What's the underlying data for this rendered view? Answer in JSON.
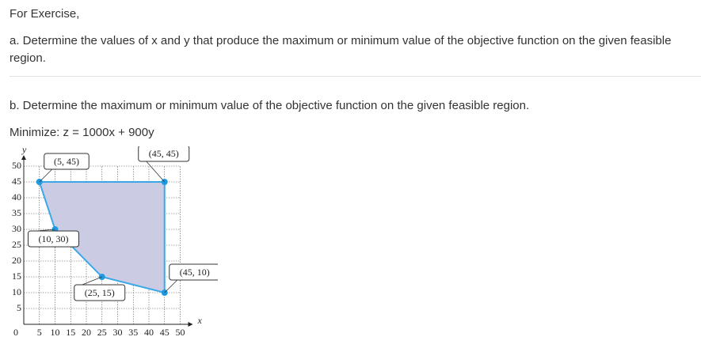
{
  "text": {
    "intro": "For Exercise,",
    "part_a": "a. Determine the values of x and y that produce the maximum or minimum value of the objective function on the given feasible region.",
    "part_b": "b. Determine the maximum or minimum value of the objective function on the given feasible region.",
    "objective": "Minimize: z = 1000x + 900y"
  },
  "chart_data": {
    "type": "polygon",
    "x_label": "x",
    "y_label": "y",
    "x": [
      5,
      45,
      45,
      25,
      10
    ],
    "values": [
      45,
      45,
      10,
      15,
      30
    ],
    "value_labels": [
      "(5, 45)",
      "(45, 45)",
      "(45, 10)",
      "(25, 15)",
      "(10, 30)"
    ],
    "fill": "#cccbe4",
    "color": "#3aa8e8",
    "point_color": "#1e9be0",
    "xlim": [
      0,
      50
    ],
    "ylim": [
      0,
      50
    ],
    "xticks": [
      0,
      5,
      10,
      15,
      20,
      25,
      30,
      35,
      40,
      45,
      50
    ],
    "yticks": [
      5,
      10,
      15,
      20,
      25,
      30,
      35,
      40,
      45,
      50
    ],
    "grid": true
  }
}
